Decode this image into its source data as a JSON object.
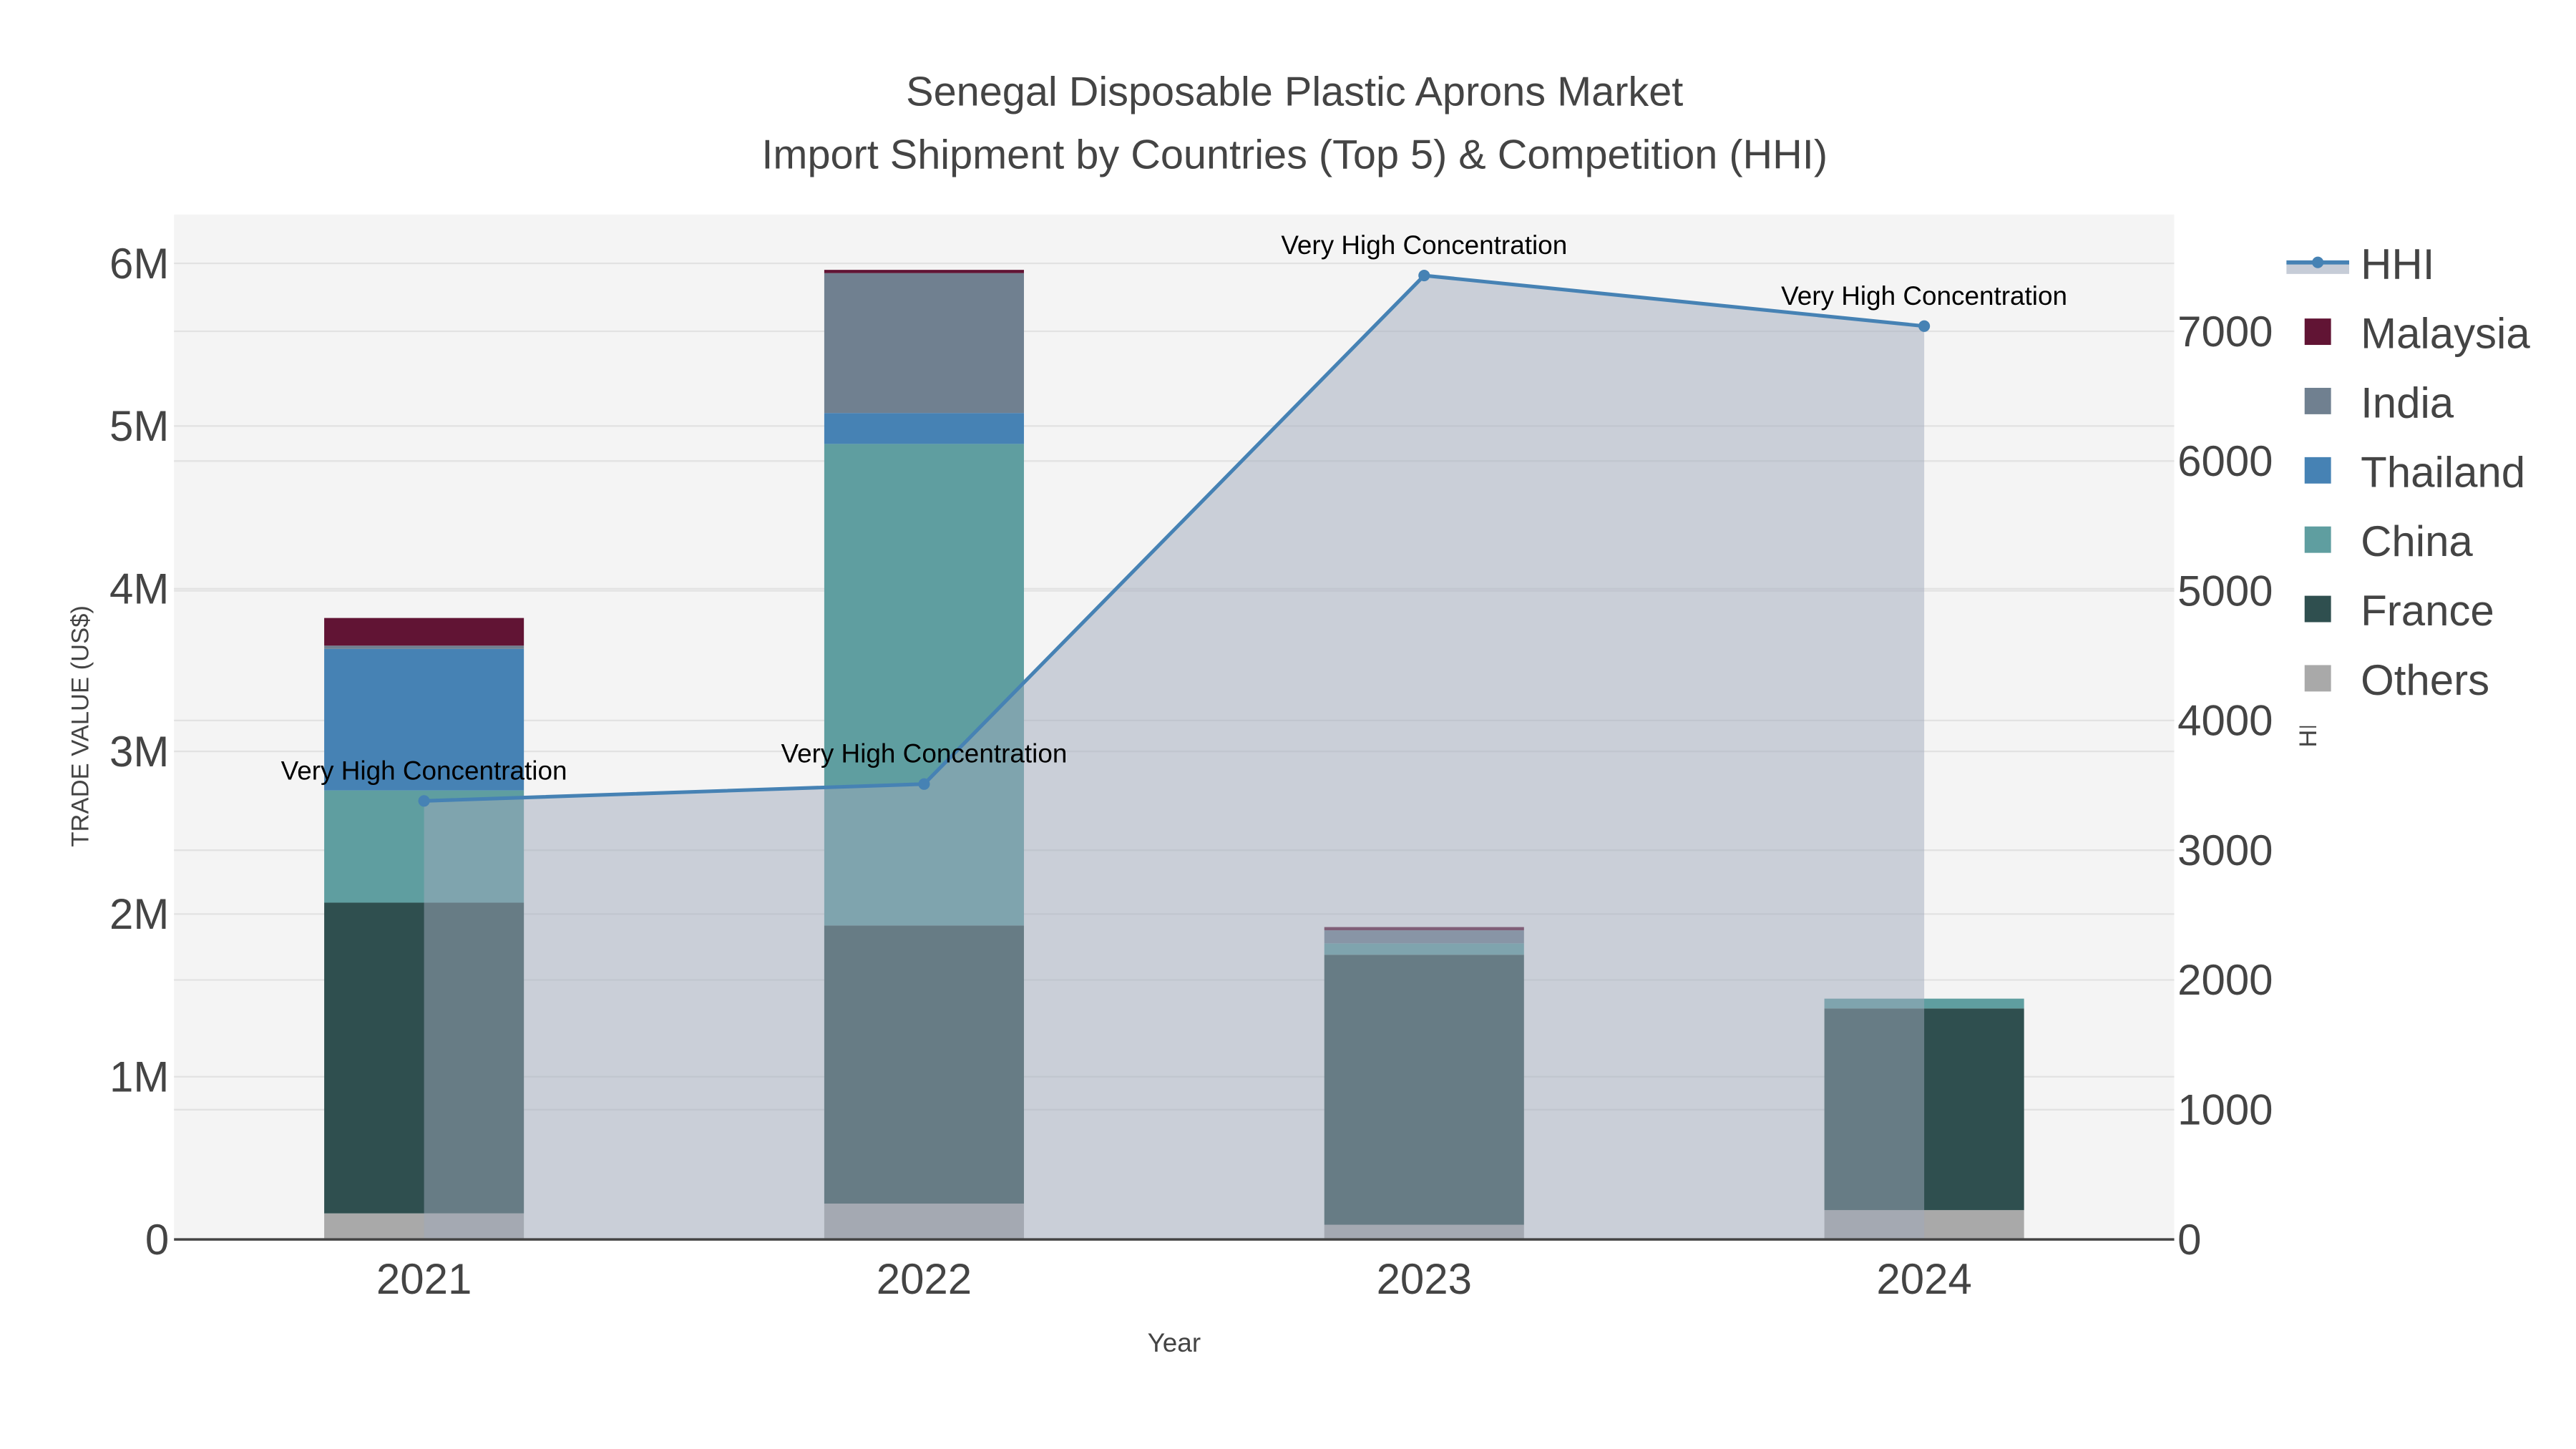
{
  "chart_data": {
    "type": "bar",
    "stacked": true,
    "title": "Senegal Disposable Plastic Aprons Market",
    "subtitle": "Import Shipment by Countries (Top 5) & Competition (HHI)",
    "xlabel": "Year",
    "ylabel": "TRADE VALUE (US$)",
    "y2label": "HHI",
    "categories": [
      "2021",
      "2022",
      "2023",
      "2024"
    ],
    "ylim": [
      0,
      6300000
    ],
    "y2lim": [
      0,
      7900
    ],
    "yticks": [
      {
        "v": 0,
        "label": "0"
      },
      {
        "v": 1000000,
        "label": "1M"
      },
      {
        "v": 2000000,
        "label": "2M"
      },
      {
        "v": 3000000,
        "label": "3M"
      },
      {
        "v": 4000000,
        "label": "4M"
      },
      {
        "v": 5000000,
        "label": "5M"
      },
      {
        "v": 6000000,
        "label": "6M"
      }
    ],
    "y2ticks": [
      {
        "v": 0,
        "label": "0"
      },
      {
        "v": 1000,
        "label": "1000"
      },
      {
        "v": 2000,
        "label": "2000"
      },
      {
        "v": 3000,
        "label": "3000"
      },
      {
        "v": 4000,
        "label": "4000"
      },
      {
        "v": 5000,
        "label": "5000"
      },
      {
        "v": 6000,
        "label": "6000"
      },
      {
        "v": 7000,
        "label": "7000"
      }
    ],
    "series": [
      {
        "name": "Others",
        "color": "#a9a9a9",
        "values": [
          160000,
          220000,
          90000,
          180000
        ]
      },
      {
        "name": "France",
        "color": "#2f4f4f",
        "values": [
          1910000,
          1710000,
          1660000,
          1240000
        ]
      },
      {
        "name": "China",
        "color": "#5f9ea0",
        "values": [
          690000,
          2960000,
          70000,
          60000
        ]
      },
      {
        "name": "Thailand",
        "color": "#4682b4",
        "values": [
          870000,
          190000,
          0,
          0
        ]
      },
      {
        "name": "India",
        "color": "#708090",
        "values": [
          20000,
          860000,
          80000,
          0
        ]
      },
      {
        "name": "Malaysia",
        "color": "#611434",
        "values": [
          170000,
          20000,
          20000,
          0
        ]
      }
    ],
    "line": {
      "name": "HHI",
      "color": "#4682b4",
      "values": [
        3380,
        3510,
        7430,
        7040
      ],
      "annotations": [
        "Very High Concentration",
        "Very High Concentration",
        "Very High Concentration",
        "Very High Concentration"
      ]
    },
    "legend_position": "right",
    "grid": true
  }
}
